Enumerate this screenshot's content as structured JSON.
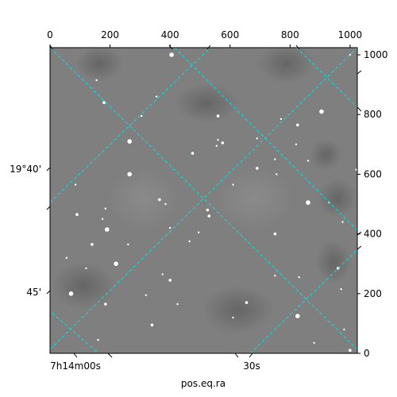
{
  "chart_data": {
    "type": "image",
    "xlabel": "pos.eq.ra",
    "ylabel": "",
    "pixel_axes": {
      "x_range": [
        0,
        1024
      ],
      "y_range": [
        0,
        1024
      ],
      "top_ticks": [
        0,
        200,
        400,
        600,
        800,
        1000
      ],
      "right_ticks": [
        0,
        200,
        400,
        600,
        800,
        1000
      ]
    },
    "world_labels": {
      "ra": [
        "7h14m00s",
        "30s"
      ],
      "dec": [
        "19°40'",
        "45'"
      ]
    },
    "grid": {
      "on": true,
      "color": "#00e5e5",
      "style": "dashed"
    },
    "image": {
      "colormap": "gray",
      "background": "#808080"
    },
    "stars": [
      [
        405,
        1000
      ],
      [
        1000,
        1000
      ],
      [
        155,
        915
      ],
      [
        180,
        840
      ],
      [
        355,
        860
      ],
      [
        305,
        795
      ],
      [
        560,
        795
      ],
      [
        905,
        810
      ],
      [
        770,
        785
      ],
      [
        825,
        765
      ],
      [
        690,
        720
      ],
      [
        555,
        695
      ],
      [
        575,
        705
      ],
      [
        560,
        715
      ],
      [
        265,
        710
      ],
      [
        475,
        670
      ],
      [
        750,
        650
      ],
      [
        860,
        645
      ],
      [
        690,
        620
      ],
      [
        1020,
        615
      ],
      [
        85,
        565
      ],
      [
        265,
        600
      ],
      [
        755,
        600
      ],
      [
        610,
        565
      ],
      [
        365,
        515
      ],
      [
        185,
        485
      ],
      [
        385,
        500
      ],
      [
        525,
        480
      ],
      [
        860,
        505
      ],
      [
        930,
        505
      ],
      [
        90,
        465
      ],
      [
        175,
        450
      ],
      [
        400,
        420
      ],
      [
        530,
        460
      ],
      [
        495,
        405
      ],
      [
        190,
        415
      ],
      [
        140,
        365
      ],
      [
        260,
        365
      ],
      [
        465,
        375
      ],
      [
        750,
        400
      ],
      [
        975,
        440
      ],
      [
        55,
        320
      ],
      [
        220,
        300
      ],
      [
        375,
        265
      ],
      [
        120,
        285
      ],
      [
        400,
        245
      ],
      [
        750,
        260
      ],
      [
        830,
        255
      ],
      [
        960,
        285
      ],
      [
        70,
        200
      ],
      [
        320,
        195
      ],
      [
        655,
        170
      ],
      [
        970,
        215
      ],
      [
        425,
        165
      ],
      [
        185,
        165
      ],
      [
        610,
        120
      ],
      [
        825,
        125
      ],
      [
        340,
        95
      ],
      [
        160,
        45
      ],
      [
        980,
        80
      ],
      [
        1000,
        10
      ],
      [
        880,
        35
      ],
      [
        820,
        700
      ]
    ]
  }
}
